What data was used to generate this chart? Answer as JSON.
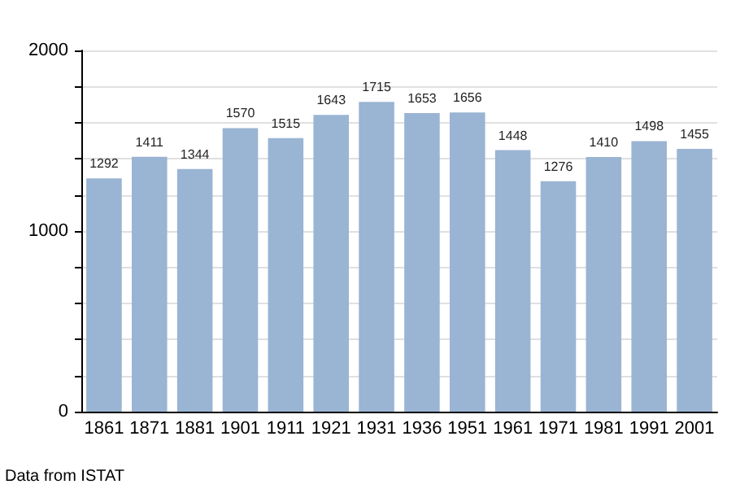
{
  "chart_data": {
    "type": "bar",
    "categories": [
      "1861",
      "1871",
      "1881",
      "1901",
      "1911",
      "1921",
      "1931",
      "1936",
      "1951",
      "1961",
      "1971",
      "1981",
      "1991",
      "2001"
    ],
    "values": [
      1292,
      1411,
      1344,
      1570,
      1515,
      1643,
      1715,
      1653,
      1656,
      1448,
      1276,
      1410,
      1498,
      1455
    ],
    "color": "#9ab4d3",
    "ylim": [
      0,
      2000
    ],
    "yticks": [
      0,
      {
        "value": 200,
        "label": null
      },
      {
        "value": 400,
        "label": null
      },
      {
        "value": 600,
        "label": null
      },
      {
        "value": 800,
        "label": null
      },
      1000,
      {
        "value": 1200,
        "label": null
      },
      {
        "value": 1400,
        "label": null
      },
      {
        "value": 1600,
        "label": null
      },
      {
        "value": 1800,
        "label": null
      },
      2000
    ],
    "grid": "y",
    "data_labels": true,
    "annotations": [
      "Data from ISTAT"
    ]
  }
}
